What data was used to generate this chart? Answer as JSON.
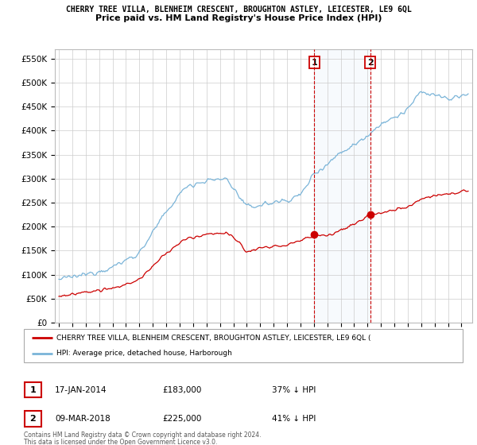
{
  "title": "CHERRY TREE VILLA, BLENHEIM CRESCENT, BROUGHTON ASTLEY, LEICESTER, LE9 6QL",
  "subtitle": "Price paid vs. HM Land Registry's House Price Index (HPI)",
  "ylabel_ticks": [
    "£0",
    "£50K",
    "£100K",
    "£150K",
    "£200K",
    "£250K",
    "£300K",
    "£350K",
    "£400K",
    "£450K",
    "£500K",
    "£550K"
  ],
  "ytick_values": [
    0,
    50000,
    100000,
    150000,
    200000,
    250000,
    300000,
    350000,
    400000,
    450000,
    500000,
    550000
  ],
  "ylim": [
    0,
    570000
  ],
  "xlim_start": 1994.7,
  "xlim_end": 2025.8,
  "transaction1_date": 2014.04,
  "transaction1_price": 183000,
  "transaction1_label": "1",
  "transaction2_date": 2018.19,
  "transaction2_price": 225000,
  "transaction2_label": "2",
  "hpi_color": "#7ab4d8",
  "price_color": "#cc0000",
  "marker_color": "#cc0000",
  "vline_color": "#cc0000",
  "shade_color": "#d6e8f5",
  "grid_color": "#cccccc",
  "background_color": "#ffffff",
  "legend_line1": "CHERRY TREE VILLA, BLENHEIM CRESCENT, BROUGHTON ASTLEY, LEICESTER, LE9 6QL (",
  "legend_line2": "HPI: Average price, detached house, Harborough",
  "note_line1": "Contains HM Land Registry data © Crown copyright and database right 2024.",
  "note_line2": "This data is licensed under the Open Government Licence v3.0."
}
